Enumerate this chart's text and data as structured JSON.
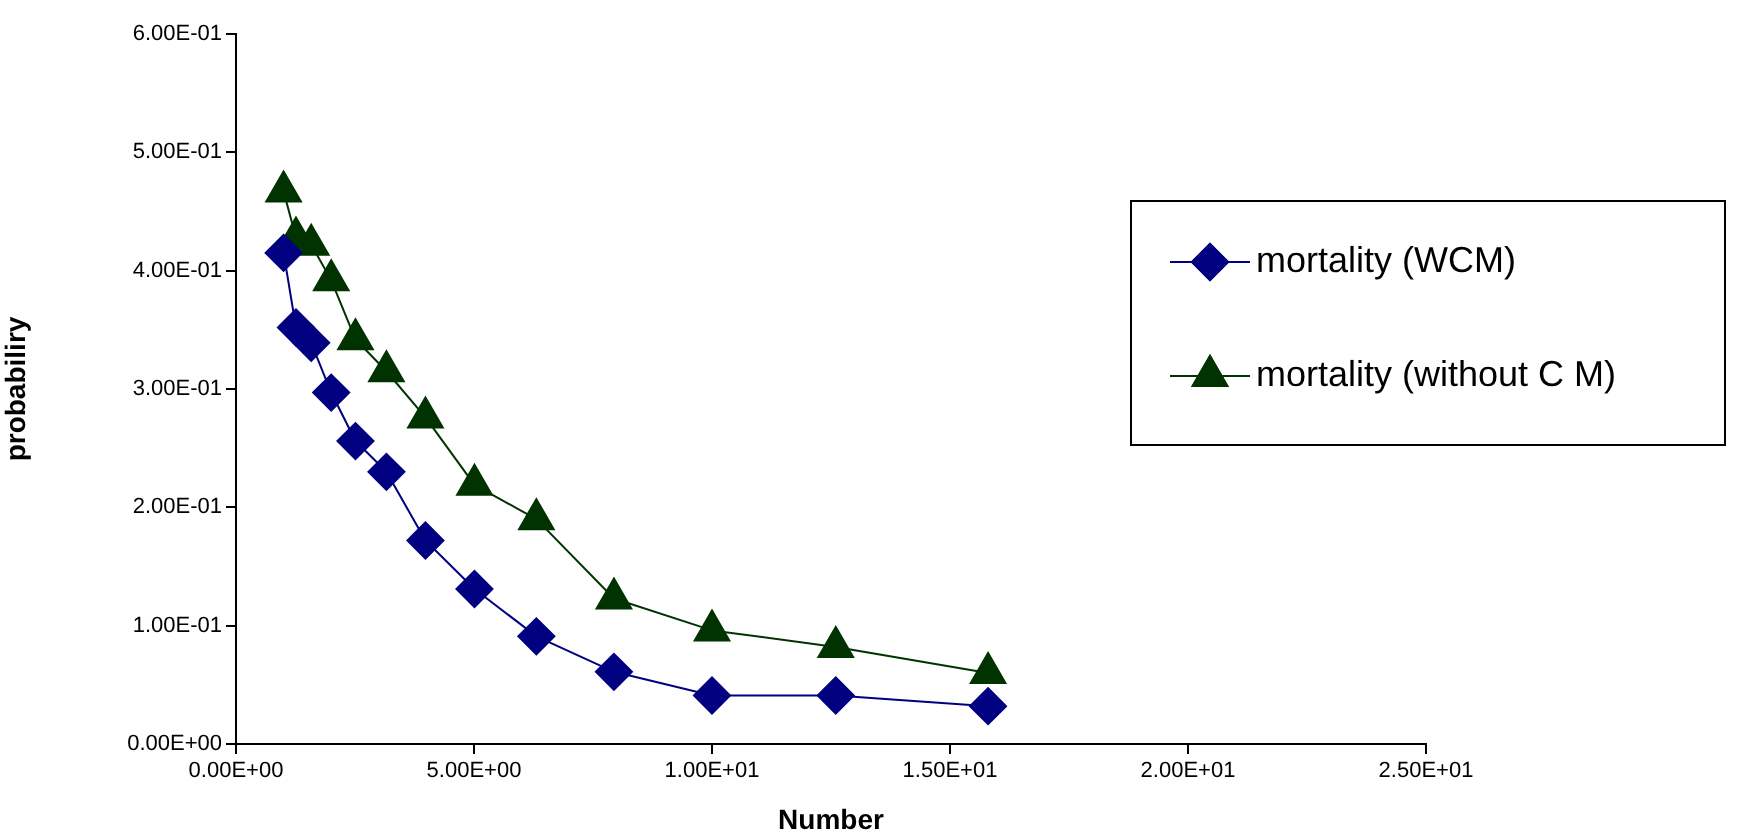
{
  "chart_data": {
    "type": "line",
    "xlabel": "Number",
    "ylabel": "probabiliry",
    "x": [
      1,
      1.26,
      1.58,
      2,
      2.51,
      3.16,
      3.98,
      5.01,
      6.31,
      7.94,
      10,
      12.6,
      15.8
    ],
    "series": [
      {
        "name": "mortality (WCM)",
        "color": "#000080",
        "marker": "diamond",
        "values": [
          0.415,
          0.352,
          0.339,
          0.297,
          0.256,
          0.23,
          0.172,
          0.131,
          0.091,
          0.061,
          0.041,
          0.041,
          0.032
        ]
      },
      {
        "name": "mortality (without C M)",
        "color": "#003300",
        "marker": "triangle",
        "values": [
          0.467,
          0.428,
          0.422,
          0.392,
          0.342,
          0.315,
          0.276,
          0.219,
          0.19,
          0.123,
          0.096,
          0.082,
          0.06
        ]
      }
    ],
    "xlim": [
      0,
      25
    ],
    "xticks": [
      {
        "value": 0,
        "label": "0.00E+00"
      },
      {
        "value": 5,
        "label": "5.00E+00"
      },
      {
        "value": 10,
        "label": "1.00E+01"
      },
      {
        "value": 15,
        "label": "1.50E+01"
      },
      {
        "value": 20,
        "label": "2.00E+01"
      },
      {
        "value": 25,
        "label": "2.50E+01"
      }
    ],
    "ylim": [
      0,
      0.6
    ],
    "yticks": [
      {
        "value": 0,
        "label": "0.00E+00"
      },
      {
        "value": 0.1,
        "label": "1.00E-01"
      },
      {
        "value": 0.2,
        "label": "2.00E-01"
      },
      {
        "value": 0.3,
        "label": "3.00E-01"
      },
      {
        "value": 0.4,
        "label": "4.00E-01"
      },
      {
        "value": 0.5,
        "label": "5.00E-01"
      },
      {
        "value": 0.6,
        "label": "6.00E-01"
      }
    ],
    "grid": false,
    "legend": "right",
    "line_style": "solid"
  }
}
